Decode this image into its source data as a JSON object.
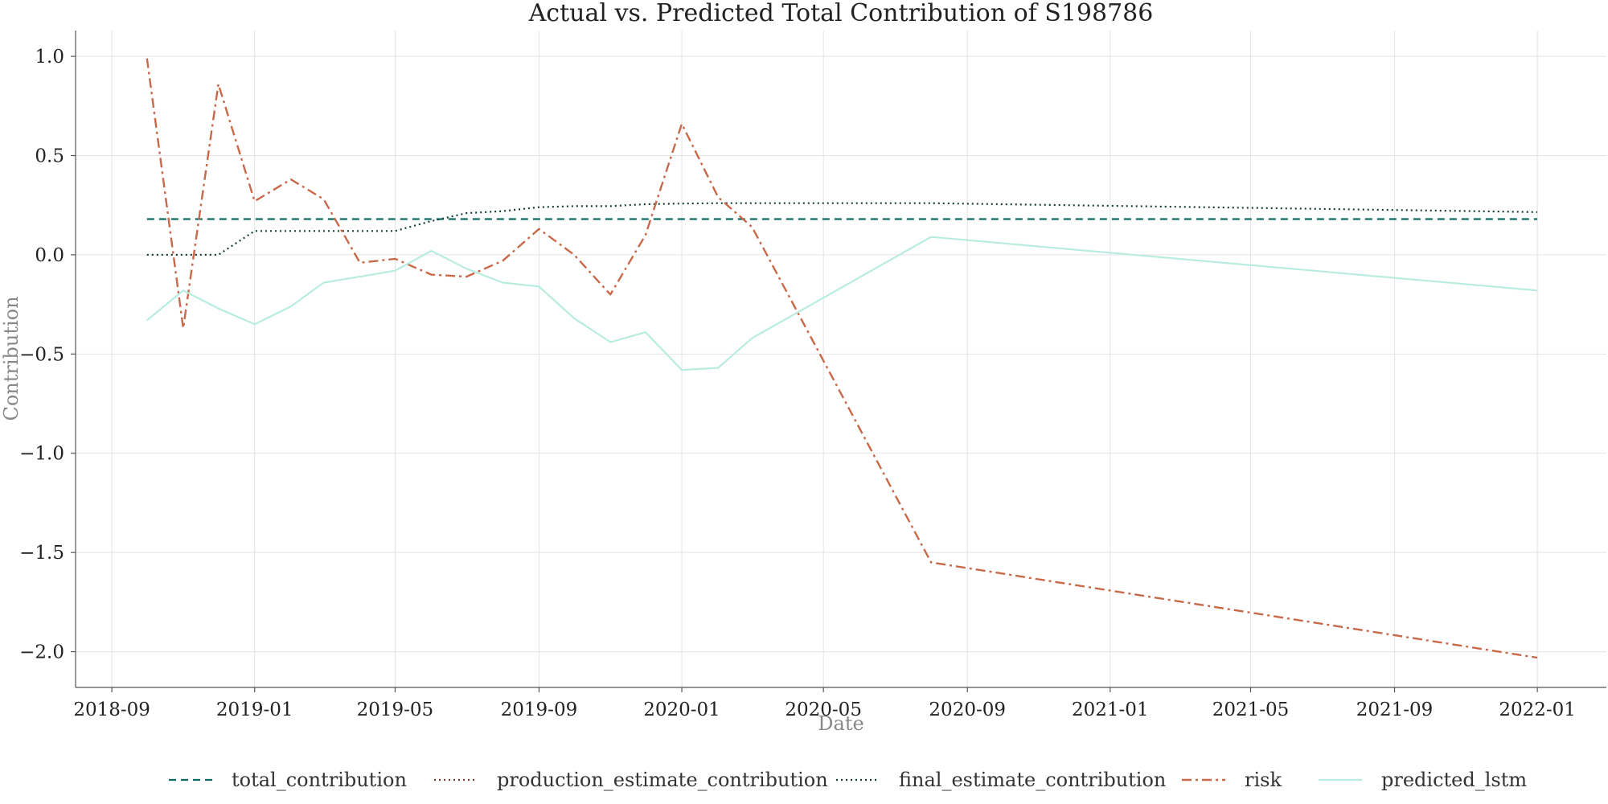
{
  "chart_data": {
    "type": "line",
    "title": "Actual vs. Predicted Total Contribution of S198786",
    "xlabel": "Date",
    "ylabel": "Contribution",
    "x_ticks": [
      "2018-09",
      "2019-01",
      "2019-05",
      "2019-09",
      "2020-01",
      "2020-05",
      "2020-09",
      "2021-01",
      "2021-05",
      "2021-09",
      "2022-01"
    ],
    "y_ticks": [
      "1.0",
      "0.5",
      "0.0",
      "−0.5",
      "−1.0",
      "−1.5",
      "−2.0"
    ],
    "xlim": [
      "2018-08-01",
      "2022-03-01"
    ],
    "ylim": [
      -2.18,
      1.13
    ],
    "grid": true,
    "legend_position": "bottom",
    "series": [
      {
        "name": "total_contribution",
        "color": "#0e6b63",
        "dash": "dashed",
        "x": [
          "2018-10-01",
          "2022-01-01"
        ],
        "y": [
          0.18,
          0.18
        ]
      },
      {
        "name": "production_estimate_contribution",
        "color": "#7b3b2f",
        "dash": "dotted",
        "x": [],
        "y": []
      },
      {
        "name": "final_estimate_contribution",
        "color": "#123d36",
        "dash": "dotted",
        "x": [
          "2018-10-01",
          "2018-11-01",
          "2018-12-01",
          "2019-01-01",
          "2019-02-01",
          "2019-03-01",
          "2019-04-01",
          "2019-05-01",
          "2019-06-01",
          "2019-07-01",
          "2019-08-01",
          "2019-09-01",
          "2019-10-01",
          "2019-11-01",
          "2019-12-01",
          "2020-01-01",
          "2020-02-01",
          "2020-03-01",
          "2020-08-01",
          "2022-01-01"
        ],
        "y": [
          0.0,
          0.0,
          0.0,
          0.12,
          0.12,
          0.12,
          0.12,
          0.12,
          0.17,
          0.21,
          0.22,
          0.24,
          0.245,
          0.245,
          0.255,
          0.258,
          0.26,
          0.26,
          0.26,
          0.215
        ]
      },
      {
        "name": "risk",
        "color": "#c8694a",
        "dash": "dashdot",
        "x": [
          "2018-10-01",
          "2018-11-01",
          "2018-12-01",
          "2019-01-01",
          "2019-02-01",
          "2019-03-01",
          "2019-04-01",
          "2019-05-01",
          "2019-06-01",
          "2019-07-01",
          "2019-08-01",
          "2019-09-01",
          "2019-10-01",
          "2019-11-01",
          "2019-12-01",
          "2020-01-01",
          "2020-02-01",
          "2020-03-01",
          "2020-08-01",
          "2022-01-01"
        ],
        "y": [
          0.99,
          -0.37,
          0.86,
          0.27,
          0.38,
          0.28,
          -0.04,
          -0.02,
          -0.1,
          -0.11,
          -0.03,
          0.13,
          0.0,
          -0.2,
          0.1,
          0.66,
          0.29,
          0.14,
          -1.55,
          -2.03
        ]
      },
      {
        "name": "predicted_lstm",
        "color": "#b8ece0",
        "dash": "solid",
        "x": [
          "2018-10-01",
          "2018-11-01",
          "2018-12-01",
          "2019-01-01",
          "2019-02-01",
          "2019-03-01",
          "2019-04-01",
          "2019-05-01",
          "2019-06-01",
          "2019-07-01",
          "2019-08-01",
          "2019-09-01",
          "2019-10-01",
          "2019-11-01",
          "2019-12-01",
          "2020-01-01",
          "2020-02-01",
          "2020-03-01",
          "2020-08-01",
          "2022-01-01"
        ],
        "y": [
          -0.33,
          -0.18,
          -0.27,
          -0.35,
          -0.26,
          -0.14,
          -0.11,
          -0.08,
          0.02,
          -0.07,
          -0.14,
          -0.16,
          -0.32,
          -0.44,
          -0.39,
          -0.58,
          -0.57,
          -0.42,
          0.09,
          -0.18
        ]
      }
    ]
  }
}
